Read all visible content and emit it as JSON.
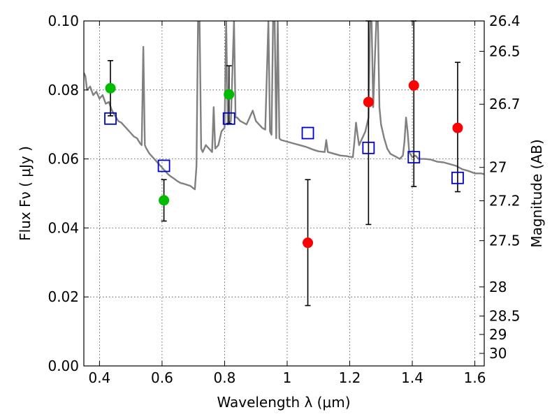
{
  "chart_data": {
    "type": "scatter",
    "xlabel": "Wavelength  λ (μm)",
    "ylabel": "Flux  Fν  ( μJy )",
    "y2label": "Magnitude (AB)",
    "xlim": [
      0.35,
      1.63
    ],
    "ylim": [
      0,
      0.1
    ],
    "grid": true,
    "x_ticks": [
      {
        "value": 0.4,
        "label": "0.4"
      },
      {
        "value": 0.6,
        "label": "0.6"
      },
      {
        "value": 0.8,
        "label": "0.8"
      },
      {
        "value": 1.0,
        "label": "1"
      },
      {
        "value": 1.2,
        "label": "1.2"
      },
      {
        "value": 1.4,
        "label": "1.4"
      },
      {
        "value": 1.6,
        "label": "1.6"
      }
    ],
    "y_ticks": [
      {
        "value": 0.0,
        "label": "0.00"
      },
      {
        "value": 0.02,
        "label": "0.02"
      },
      {
        "value": 0.04,
        "label": "0.04"
      },
      {
        "value": 0.06,
        "label": "0.06"
      },
      {
        "value": 0.08,
        "label": "0.08"
      },
      {
        "value": 0.1,
        "label": "0.10"
      }
    ],
    "y2_ticks": [
      {
        "value": 26.4,
        "label": "26.4"
      },
      {
        "value": 26.5,
        "label": "26.5"
      },
      {
        "value": 26.7,
        "label": "26.7"
      },
      {
        "value": 27.0,
        "label": "27"
      },
      {
        "value": 27.2,
        "label": "27.2"
      },
      {
        "value": 27.5,
        "label": "27.5"
      },
      {
        "value": 28.0,
        "label": "28"
      },
      {
        "value": 28.5,
        "label": "28.5"
      },
      {
        "value": 29.0,
        "label": "29"
      },
      {
        "value": 30.0,
        "label": "30"
      }
    ],
    "series": [
      {
        "marker": "circle",
        "color": "#00bb00",
        "points": [
          {
            "x": 0.435,
            "y": 0.0805,
            "err_low": 0.0725,
            "err_high": 0.0885
          },
          {
            "x": 0.606,
            "y": 0.048,
            "err_low": 0.042,
            "err_high": 0.054
          },
          {
            "x": 0.814,
            "y": 0.0787,
            "err_low": 0.0703,
            "err_high": 0.087
          }
        ]
      },
      {
        "marker": "circle",
        "color": "#ff0000",
        "points": [
          {
            "x": 1.066,
            "y": 0.0357,
            "err_low": 0.0175,
            "err_high": 0.054
          },
          {
            "x": 1.26,
            "y": 0.0765,
            "err_low": 0.041,
            "err_high": 0.1
          },
          {
            "x": 1.405,
            "y": 0.0813,
            "err_low": 0.052,
            "err_high": 0.1
          },
          {
            "x": 1.545,
            "y": 0.069,
            "err_low": 0.0505,
            "err_high": 0.088
          }
        ]
      },
      {
        "marker": "square-open",
        "color": "#0000cc",
        "points": [
          {
            "x": 0.435,
            "y": 0.0717
          },
          {
            "x": 0.606,
            "y": 0.058
          },
          {
            "x": 0.814,
            "y": 0.0717
          },
          {
            "x": 1.066,
            "y": 0.0675
          },
          {
            "x": 1.26,
            "y": 0.0632
          },
          {
            "x": 1.405,
            "y": 0.0605
          },
          {
            "x": 1.545,
            "y": 0.0545
          }
        ]
      }
    ],
    "model_spectrum": {
      "type": "line",
      "color": "#808080",
      "points": [
        [
          0.35,
          0.085
        ],
        [
          0.355,
          0.084
        ],
        [
          0.36,
          0.08
        ],
        [
          0.37,
          0.081
        ],
        [
          0.38,
          0.0785
        ],
        [
          0.39,
          0.0795
        ],
        [
          0.4,
          0.0775
        ],
        [
          0.41,
          0.0785
        ],
        [
          0.42,
          0.076
        ],
        [
          0.43,
          0.0765
        ],
        [
          0.44,
          0.074
        ],
        [
          0.45,
          0.0725
        ],
        [
          0.46,
          0.071
        ],
        [
          0.47,
          0.0705
        ],
        [
          0.48,
          0.0695
        ],
        [
          0.49,
          0.0685
        ],
        [
          0.5,
          0.0675
        ],
        [
          0.51,
          0.0665
        ],
        [
          0.52,
          0.066
        ],
        [
          0.53,
          0.0645
        ],
        [
          0.535,
          0.064
        ],
        [
          0.54,
          0.0925
        ],
        [
          0.545,
          0.064
        ],
        [
          0.55,
          0.063
        ],
        [
          0.56,
          0.0615
        ],
        [
          0.57,
          0.0605
        ],
        [
          0.58,
          0.0595
        ],
        [
          0.59,
          0.0585
        ],
        [
          0.6,
          0.0575
        ],
        [
          0.61,
          0.0565
        ],
        [
          0.62,
          0.0555
        ],
        [
          0.63,
          0.0548
        ],
        [
          0.64,
          0.0542
        ],
        [
          0.65,
          0.0535
        ],
        [
          0.66,
          0.053
        ],
        [
          0.67,
          0.0528
        ],
        [
          0.68,
          0.0525
        ],
        [
          0.69,
          0.0522
        ],
        [
          0.7,
          0.0515
        ],
        [
          0.705,
          0.0512
        ],
        [
          0.71,
          0.058
        ],
        [
          0.715,
          0.1
        ],
        [
          0.72,
          0.1
        ],
        [
          0.725,
          0.063
        ],
        [
          0.73,
          0.062
        ],
        [
          0.74,
          0.064
        ],
        [
          0.75,
          0.063
        ],
        [
          0.76,
          0.062
        ],
        [
          0.765,
          0.075
        ],
        [
          0.77,
          0.063
        ],
        [
          0.78,
          0.064
        ],
        [
          0.79,
          0.068
        ],
        [
          0.8,
          0.069
        ],
        [
          0.805,
          0.1
        ],
        [
          0.81,
          0.07
        ],
        [
          0.82,
          0.071
        ],
        [
          0.83,
          0.1
        ],
        [
          0.835,
          0.072
        ],
        [
          0.84,
          0.072
        ],
        [
          0.85,
          0.071
        ],
        [
          0.86,
          0.0705
        ],
        [
          0.87,
          0.07
        ],
        [
          0.88,
          0.072
        ],
        [
          0.89,
          0.074
        ],
        [
          0.9,
          0.071
        ],
        [
          0.91,
          0.07
        ],
        [
          0.92,
          0.069
        ],
        [
          0.93,
          0.0685
        ],
        [
          0.94,
          0.1
        ],
        [
          0.945,
          0.068
        ],
        [
          0.95,
          0.067
        ],
        [
          0.955,
          0.1
        ],
        [
          0.96,
          0.1
        ],
        [
          0.965,
          0.066
        ],
        [
          0.97,
          0.1
        ],
        [
          0.975,
          0.066
        ],
        [
          0.98,
          0.0655
        ],
        [
          1.0,
          0.065
        ],
        [
          1.02,
          0.0645
        ],
        [
          1.04,
          0.064
        ],
        [
          1.06,
          0.0635
        ],
        [
          1.08,
          0.0628
        ],
        [
          1.1,
          0.0622
        ],
        [
          1.12,
          0.062
        ],
        [
          1.125,
          0.0655
        ],
        [
          1.13,
          0.062
        ],
        [
          1.15,
          0.0615
        ],
        [
          1.17,
          0.061
        ],
        [
          1.19,
          0.0608
        ],
        [
          1.2,
          0.0606
        ],
        [
          1.21,
          0.0605
        ],
        [
          1.215,
          0.065
        ],
        [
          1.22,
          0.0705
        ],
        [
          1.225,
          0.067
        ],
        [
          1.23,
          0.064
        ],
        [
          1.24,
          0.066
        ],
        [
          1.25,
          0.068
        ],
        [
          1.26,
          0.072
        ],
        [
          1.265,
          0.1
        ],
        [
          1.27,
          0.1
        ],
        [
          1.275,
          0.075
        ],
        [
          1.28,
          0.088
        ],
        [
          1.285,
          0.1
        ],
        [
          1.29,
          0.1
        ],
        [
          1.295,
          0.075
        ],
        [
          1.3,
          0.07
        ],
        [
          1.31,
          0.066
        ],
        [
          1.32,
          0.063
        ],
        [
          1.33,
          0.0615
        ],
        [
          1.34,
          0.061
        ],
        [
          1.35,
          0.0605
        ],
        [
          1.36,
          0.06
        ],
        [
          1.37,
          0.061
        ],
        [
          1.375,
          0.065
        ],
        [
          1.38,
          0.072
        ],
        [
          1.385,
          0.068
        ],
        [
          1.39,
          0.062
        ],
        [
          1.4,
          0.0605
        ],
        [
          1.41,
          0.061
        ],
        [
          1.42,
          0.06
        ],
        [
          1.44,
          0.06
        ],
        [
          1.46,
          0.0598
        ],
        [
          1.48,
          0.0592
        ],
        [
          1.5,
          0.059
        ],
        [
          1.52,
          0.0585
        ],
        [
          1.54,
          0.058
        ],
        [
          1.56,
          0.057
        ],
        [
          1.58,
          0.0565
        ],
        [
          1.6,
          0.0558
        ],
        [
          1.62,
          0.0558
        ],
        [
          1.63,
          0.0556
        ]
      ]
    }
  }
}
